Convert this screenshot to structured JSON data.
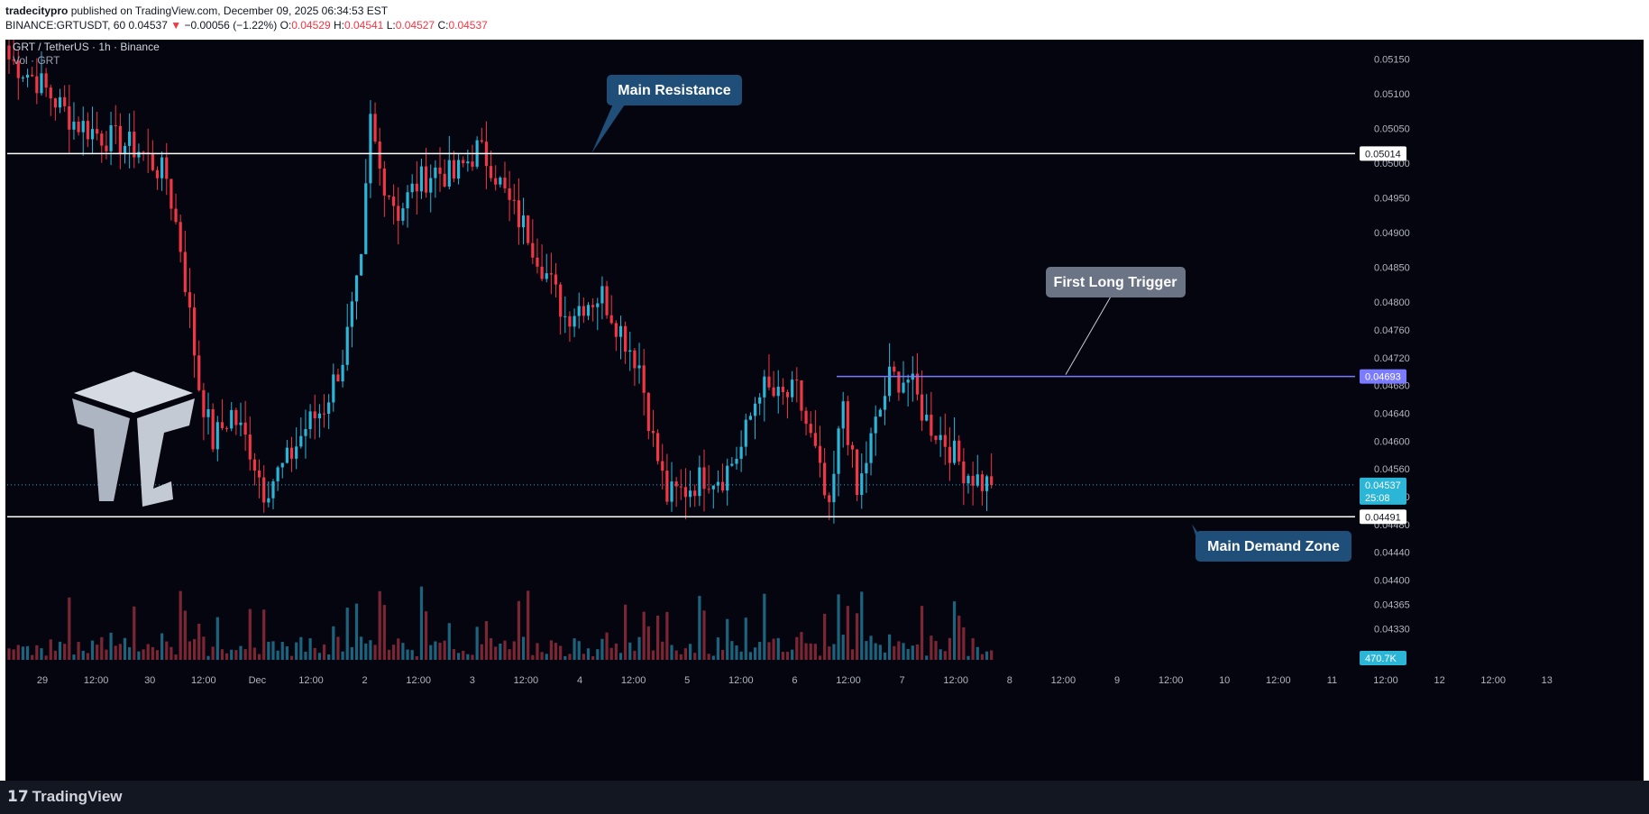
{
  "header": {
    "author": "tradecitypro",
    "published_text": "published on TradingView.com, December 09, 2025 06:34:53 EST",
    "symbol_interval": "BINANCE:GRTUSDT, 60",
    "last_price": "0.04537",
    "change_arrow": "▼",
    "change_text": "−0.00056 (−1.22%)",
    "open_label": "O:",
    "open": "0.04529",
    "high_label": "H:",
    "high": "0.04541",
    "low_label": "L:",
    "low": "0.04527",
    "close_label": "C:",
    "close": "0.04537"
  },
  "footer": {
    "brand": "TradingView",
    "brand_logo": "tradingview-logo-icon"
  },
  "colors": {
    "background": "#050510",
    "up": "#2bb5d6",
    "down": "#f23645",
    "level_line": "#ffffff",
    "trigger_line": "#7b7bff",
    "callout_blue": "#1f4e79",
    "callout_gray": "#6b7485",
    "current_price": "#2bb5d6"
  },
  "chart_data": {
    "type": "candlestick",
    "symbol_title": "GRT / TetherUS · 1h · Binance",
    "volume_title": "Vol · GRT",
    "ylim": [
      0.04285,
      0.05178
    ],
    "y_ticks": [
      "0.05150",
      "0.05100",
      "0.05050",
      "0.05000",
      "0.04950",
      "0.04900",
      "0.04850",
      "0.04800",
      "0.04760",
      "0.04720",
      "0.04680",
      "0.04640",
      "0.04600",
      "0.04560",
      "0.04520",
      "0.04480",
      "0.04440",
      "0.04400",
      "0.04365",
      "0.04330"
    ],
    "x_ticks": [
      "29",
      "12:00",
      "30",
      "12:00",
      "Dec",
      "12:00",
      "2",
      "12:00",
      "3",
      "12:00",
      "4",
      "12:00",
      "5",
      "12:00",
      "6",
      "12:00",
      "7",
      "12:00",
      "8",
      "12:00",
      "9",
      "12:00",
      "10",
      "12:00",
      "11",
      "12:00",
      "12",
      "12:00",
      "13"
    ],
    "levels": [
      {
        "name": "Main Resistance",
        "price": "0.05014"
      },
      {
        "name": "Main Demand Zone",
        "price": "0.04491"
      },
      {
        "name": "First Long Trigger",
        "price": "0.04693"
      }
    ],
    "current_price": "0.04537",
    "countdown": "25:08",
    "last_volume": "470.7K",
    "annotations": [
      "Main Resistance",
      "First Long Trigger",
      "Main Demand Zone"
    ],
    "waypoints": [
      [
        0,
        0.0515
      ],
      [
        6,
        0.0512
      ],
      [
        14,
        0.0506
      ],
      [
        20,
        0.0504
      ],
      [
        28,
        0.0502
      ],
      [
        34,
        0.0498
      ],
      [
        37,
        0.0488
      ],
      [
        41,
        0.0468
      ],
      [
        44,
        0.046
      ],
      [
        48,
        0.0464
      ],
      [
        52,
        0.0459
      ],
      [
        55,
        0.0453
      ],
      [
        60,
        0.0457
      ],
      [
        64,
        0.0462
      ],
      [
        68,
        0.0465
      ],
      [
        72,
        0.0472
      ],
      [
        76,
        0.0485
      ],
      [
        78,
        0.0506
      ],
      [
        80,
        0.0499
      ],
      [
        84,
        0.0493
      ],
      [
        88,
        0.0497
      ],
      [
        92,
        0.0499
      ],
      [
        96,
        0.0498
      ],
      [
        101,
        0.0502
      ],
      [
        104,
        0.05
      ],
      [
        108,
        0.0494
      ],
      [
        112,
        0.049
      ],
      [
        116,
        0.0484
      ],
      [
        120,
        0.0478
      ],
      [
        124,
        0.048
      ],
      [
        128,
        0.0481
      ],
      [
        132,
        0.0476
      ],
      [
        136,
        0.0471
      ],
      [
        139,
        0.046
      ],
      [
        142,
        0.0452
      ],
      [
        146,
        0.0453
      ],
      [
        150,
        0.0455
      ],
      [
        154,
        0.0455
      ],
      [
        158,
        0.0459
      ],
      [
        162,
        0.0468
      ],
      [
        166,
        0.0466
      ],
      [
        170,
        0.0467
      ],
      [
        174,
        0.0458
      ],
      [
        177,
        0.0449
      ],
      [
        180,
        0.0466
      ],
      [
        183,
        0.0452
      ],
      [
        186,
        0.046
      ],
      [
        190,
        0.0469
      ],
      [
        194,
        0.0469
      ],
      [
        198,
        0.0463
      ],
      [
        202,
        0.046
      ],
      [
        206,
        0.0456
      ],
      [
        210,
        0.0454
      ],
      [
        212,
        0.04537
      ]
    ]
  }
}
